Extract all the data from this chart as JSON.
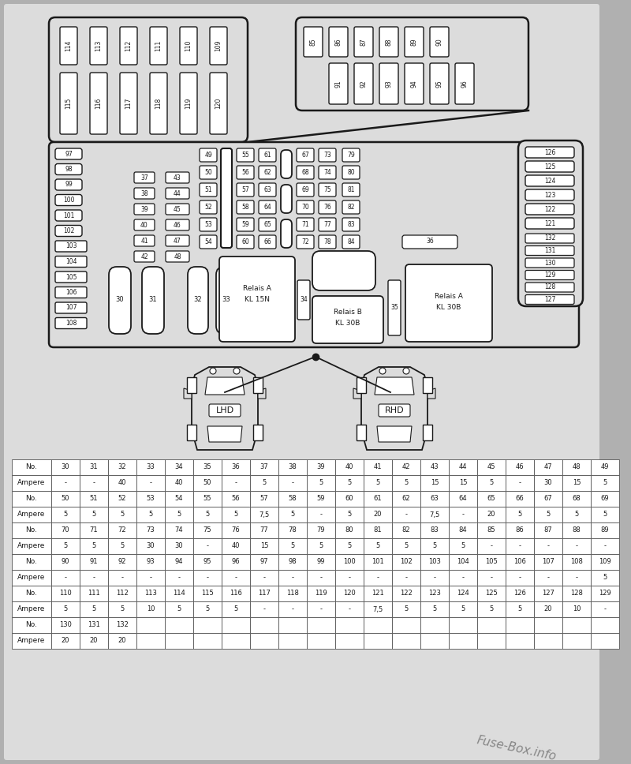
{
  "bg_color": "#b0b0b0",
  "paper_color": "#dcdcdc",
  "line_color": "#1a1a1a",
  "table_rows": [
    [
      "No.",
      "30",
      "31",
      "32",
      "33",
      "34",
      "35",
      "36",
      "37",
      "38",
      "39",
      "40",
      "41",
      "42",
      "43",
      "44",
      "45",
      "46",
      "47",
      "48",
      "49"
    ],
    [
      "Ampere",
      "-",
      "-",
      "40",
      "-",
      "40",
      "50",
      "-",
      "5",
      "-",
      "5",
      "5",
      "5",
      "5",
      "15",
      "15",
      "5",
      "-",
      "30",
      "15",
      "5"
    ],
    [
      "No.",
      "50",
      "51",
      "52",
      "53",
      "54",
      "55",
      "56",
      "57",
      "58",
      "59",
      "60",
      "61",
      "62",
      "63",
      "64",
      "65",
      "66",
      "67",
      "68",
      "69"
    ],
    [
      "Ampere",
      "5",
      "5",
      "5",
      "5",
      "5",
      "5",
      "5",
      "7,5",
      "5",
      "-",
      "5",
      "20",
      "-",
      "7,5",
      "-",
      "20",
      "5",
      "5",
      "5",
      "5"
    ],
    [
      "No.",
      "70",
      "71",
      "72",
      "73",
      "74",
      "75",
      "76",
      "77",
      "78",
      "79",
      "80",
      "81",
      "82",
      "83",
      "84",
      "85",
      "86",
      "87",
      "88",
      "89"
    ],
    [
      "Ampere",
      "5",
      "5",
      "5",
      "30",
      "30",
      "-",
      "40",
      "15",
      "5",
      "5",
      "5",
      "5",
      "5",
      "5",
      "5",
      "-",
      "-",
      "-",
      "-",
      "-"
    ],
    [
      "No.",
      "90",
      "91",
      "92",
      "93",
      "94",
      "95",
      "96",
      "97",
      "98",
      "99",
      "100",
      "101",
      "102",
      "103",
      "104",
      "105",
      "106",
      "107",
      "108",
      "109"
    ],
    [
      "Ampere",
      "-",
      "-",
      "-",
      "-",
      "-",
      "-",
      "-",
      "-",
      "-",
      "-",
      "-",
      "-",
      "-",
      "-",
      "-",
      "-",
      "-",
      "-",
      "-",
      "5"
    ],
    [
      "No.",
      "110",
      "111",
      "112",
      "113",
      "114",
      "115",
      "116",
      "117",
      "118",
      "119",
      "120",
      "121",
      "122",
      "123",
      "124",
      "125",
      "126",
      "127",
      "128",
      "129"
    ],
    [
      "Ampere",
      "5",
      "5",
      "5",
      "10",
      "5",
      "5",
      "5",
      "-",
      "-",
      "-",
      "-",
      "7,5",
      "5",
      "5",
      "5",
      "5",
      "5",
      "20",
      "10",
      "-"
    ],
    [
      "No.",
      "130",
      "131",
      "132",
      "",
      "",
      "",
      "",
      "",
      "",
      "",
      "",
      "",
      "",
      "",
      "",
      "",
      "",
      "",
      "",
      ""
    ],
    [
      "Ampere",
      "20",
      "20",
      "20",
      "",
      "",
      "",
      "",
      "",
      "",
      "",
      "",
      "",
      "",
      "",
      "",
      "",
      "",
      "",
      "",
      ""
    ]
  ],
  "watermark": "Fuse-Box.info"
}
